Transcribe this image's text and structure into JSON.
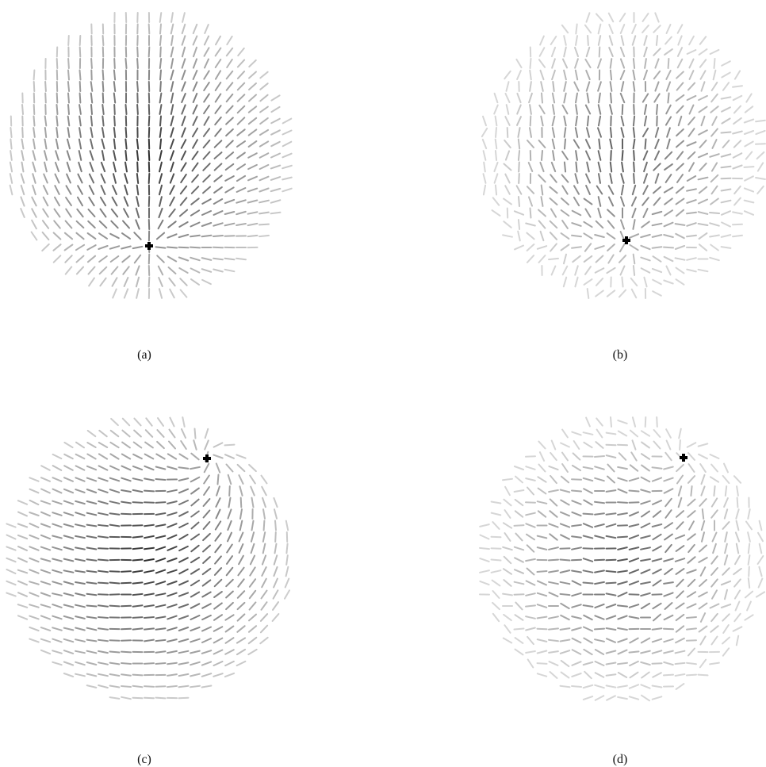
{
  "figure": {
    "panels": [
      {
        "label": "(a)",
        "singularity_at_bottom": true,
        "field": "radial-converging",
        "noise": "low"
      },
      {
        "label": "(b)",
        "singularity_at_bottom": true,
        "field": "radial-converging",
        "noise": "high"
      },
      {
        "label": "(c)",
        "singularity_at_bottom": false,
        "field": "swirl",
        "noise": "low"
      },
      {
        "label": "(d)",
        "singularity_at_bottom": false,
        "field": "swirl",
        "noise": "high"
      }
    ],
    "colors": {
      "background": "#ffffff",
      "segment_dark": "#2b2b2b",
      "segment_light": "#d6d6d6",
      "marker": "#000000"
    },
    "icons": {
      "marker": "plus-marker-icon"
    }
  }
}
